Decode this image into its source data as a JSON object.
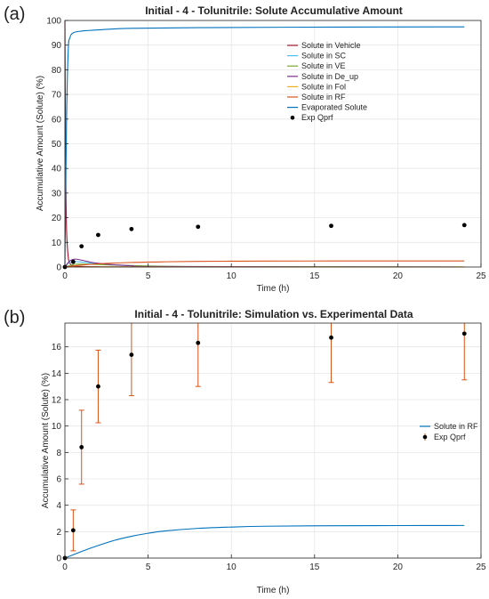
{
  "panels": [
    {
      "panel_label": "(a)",
      "title": "Initial - 4 - Tolunitrile: Solute Accumulative Amount",
      "xlabel": "Time (h)",
      "ylabel": "Accumulative Amount (Solute) (%)",
      "xticks": [
        0,
        5,
        10,
        15,
        20,
        25
      ],
      "yticks": [
        0,
        10,
        20,
        30,
        40,
        50,
        60,
        70,
        80,
        90,
        100
      ]
    },
    {
      "panel_label": "(b)",
      "title": "Initial - 4 - Tolunitrile: Simulation vs. Experimental Data",
      "xlabel": "Time (h)",
      "ylabel": "Accumulative Amount (Solute) (%)",
      "xticks": [
        0,
        5,
        10,
        15,
        20,
        25
      ],
      "yticks": [
        0,
        2,
        4,
        6,
        8,
        10,
        12,
        14,
        16
      ]
    }
  ],
  "chart_data": [
    {
      "type": "line",
      "title": "Initial - 4 - Tolunitrile: Solute Accumulative Amount",
      "xlabel": "Time (h)",
      "ylabel": "Accumulative Amount (Solute) (%)",
      "xlim": [
        0,
        25
      ],
      "ylim": [
        0,
        100
      ],
      "grid": true,
      "legend_position": "top-right",
      "series": [
        {
          "name": "Solute in Vehicle",
          "color": "#a2142f",
          "x": [
            0,
            0.05,
            0.1,
            0.2,
            0.3,
            0.5,
            1,
            2,
            4,
            24
          ],
          "y": [
            100,
            40,
            15,
            4,
            1.5,
            0.5,
            0.2,
            0.1,
            0.05,
            0
          ]
        },
        {
          "name": "Solute in SC",
          "color": "#4dbeee",
          "x": [
            0,
            0.2,
            0.5,
            1,
            2,
            3,
            4,
            6,
            24
          ],
          "y": [
            0,
            1.5,
            2.2,
            2.0,
            1.3,
            0.8,
            0.5,
            0.2,
            0
          ]
        },
        {
          "name": "Solute in VE",
          "color": "#77ac30",
          "x": [
            0,
            0.5,
            1,
            2,
            4,
            6,
            10,
            24
          ],
          "y": [
            0,
            1.0,
            1.2,
            1.0,
            0.6,
            0.3,
            0.1,
            0
          ]
        },
        {
          "name": "Solute in De_up",
          "color": "#7e2f8e",
          "x": [
            0,
            0.3,
            0.6,
            1,
            2,
            4,
            6,
            24
          ],
          "y": [
            0,
            2.5,
            3.2,
            2.8,
            1.5,
            0.5,
            0.2,
            0
          ]
        },
        {
          "name": "Solute in Fol",
          "color": "#edb120",
          "x": [
            0,
            24
          ],
          "y": [
            0,
            0.05
          ]
        },
        {
          "name": "Solute in RF",
          "color": "#d95319",
          "x": [
            0,
            1,
            2,
            4,
            6,
            8,
            10,
            12,
            16,
            20,
            24
          ],
          "y": [
            0,
            0.8,
            1.3,
            1.85,
            2.12,
            2.27,
            2.36,
            2.41,
            2.45,
            2.46,
            2.47
          ]
        },
        {
          "name": "Evaporated Solute",
          "color": "#0072bd",
          "x": [
            0,
            0.1,
            0.2,
            0.3,
            0.5,
            1,
            2,
            4,
            8,
            16,
            24
          ],
          "y": [
            0,
            60,
            88,
            93,
            95,
            95.7,
            96.2,
            96.8,
            97.1,
            97.3,
            97.4
          ]
        }
      ],
      "points": {
        "name": "Exp Qprf",
        "color": "#000000",
        "x": [
          0,
          0.5,
          1,
          2,
          4,
          8,
          16,
          24
        ],
        "y": [
          0,
          2.1,
          8.4,
          13.0,
          15.4,
          16.3,
          16.7,
          17.0
        ]
      }
    },
    {
      "type": "line",
      "title": "Initial - 4 - Tolunitrile: Simulation vs. Experimental Data",
      "xlabel": "Time (h)",
      "ylabel": "Accumulative Amount (Solute) (%)",
      "xlim": [
        0,
        25
      ],
      "ylim": [
        0,
        17.8
      ],
      "grid": true,
      "legend_position": "right",
      "series": [
        {
          "name": "Solute in RF",
          "color": "#0072bd",
          "x": [
            0,
            1,
            2,
            3,
            4,
            5,
            6,
            8,
            10,
            12,
            16,
            20,
            24
          ],
          "y": [
            0,
            0.5,
            0.95,
            1.35,
            1.65,
            1.88,
            2.05,
            2.25,
            2.35,
            2.41,
            2.45,
            2.46,
            2.47
          ]
        }
      ],
      "points": {
        "name": "Exp Qprf",
        "color": "#000000",
        "error_color": "#d95319",
        "x": [
          0,
          0.5,
          1,
          2,
          4,
          8,
          16,
          24
        ],
        "y": [
          0,
          2.1,
          8.4,
          13.0,
          15.4,
          16.3,
          16.7,
          17.0
        ],
        "err": [
          0,
          1.55,
          2.8,
          2.75,
          3.1,
          3.3,
          3.4,
          3.5
        ]
      }
    }
  ]
}
